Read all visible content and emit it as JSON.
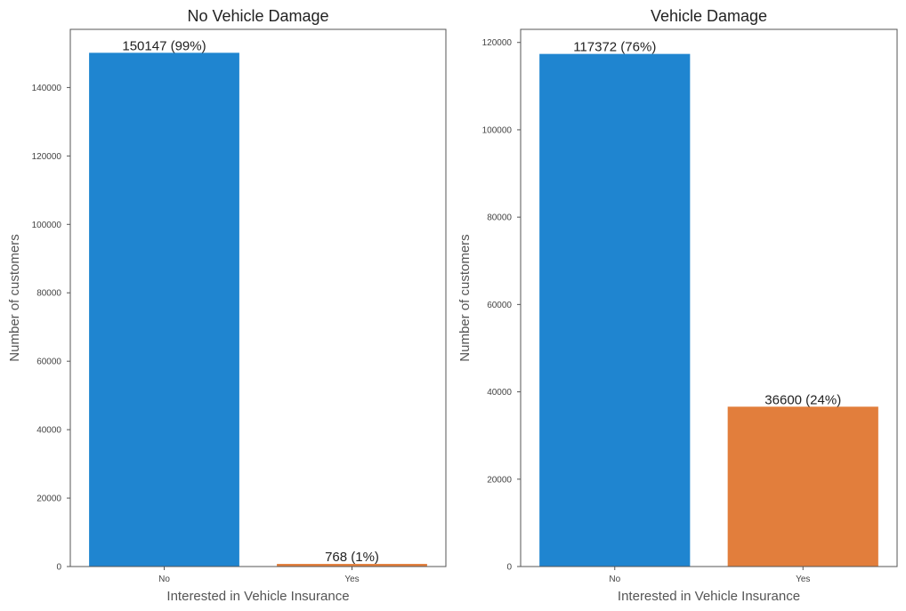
{
  "colors": {
    "no": "#1f85d0",
    "yes": "#e27e3c"
  },
  "chart_data": [
    {
      "type": "bar",
      "title": "No Vehicle Damage",
      "xlabel": "Interested in Vehicle Insurance",
      "ylabel": "Number of customers",
      "categories": [
        "No",
        "Yes"
      ],
      "values": [
        150147,
        768
      ],
      "bar_labels": [
        "150147 (99%)",
        "768 (1%)"
      ],
      "ylim": [
        0,
        157000
      ],
      "yticks": [
        0,
        20000,
        40000,
        60000,
        80000,
        100000,
        120000,
        140000
      ],
      "ytick_labels": [
        "0",
        "20000",
        "40000",
        "60000",
        "80000",
        "100000",
        "120000",
        "140000"
      ],
      "grid": false,
      "legend": "none"
    },
    {
      "type": "bar",
      "title": "Vehicle Damage",
      "xlabel": "Interested in Vehicle Insurance",
      "ylabel": "Number of customers",
      "categories": [
        "No",
        "Yes"
      ],
      "values": [
        117372,
        36600
      ],
      "bar_labels": [
        "117372 (76%)",
        "36600 (24%)"
      ],
      "ylim": [
        0,
        123000
      ],
      "yticks": [
        0,
        20000,
        40000,
        60000,
        80000,
        100000,
        120000
      ],
      "ytick_labels": [
        "0",
        "20000",
        "40000",
        "60000",
        "80000",
        "100000",
        "120000"
      ],
      "grid": false,
      "legend": "none"
    }
  ]
}
